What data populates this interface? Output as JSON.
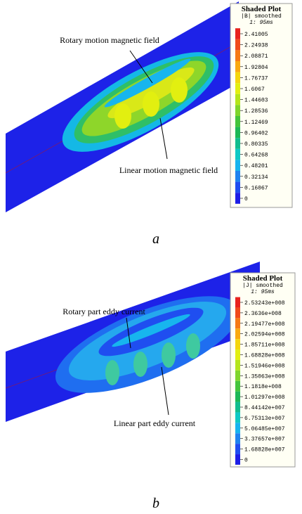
{
  "panels": [
    {
      "annotations": [
        "Rotary motion magnetic field",
        "Linear motion magnetic field"
      ],
      "legend": {
        "title": "Shaded Plot",
        "quantity": "|B| smoothed",
        "time": "1: 95ms",
        "levels": [
          {
            "label": "2.41005",
            "color": "#e8231e"
          },
          {
            "label": "2.24938",
            "color": "#f04a1a"
          },
          {
            "label": "2.08871",
            "color": "#f67a14"
          },
          {
            "label": "1.92804",
            "color": "#f9a90f"
          },
          {
            "label": "1.76737",
            "color": "#f4d60c"
          },
          {
            "label": "1.6067",
            "color": "#e2ef10"
          },
          {
            "label": "1.44603",
            "color": "#b4e51a"
          },
          {
            "label": "1.28536",
            "color": "#7fd52a"
          },
          {
            "label": "1.12469",
            "color": "#44c43a"
          },
          {
            "label": "0.96402",
            "color": "#1db855"
          },
          {
            "label": "0.80335",
            "color": "#12bd8d"
          },
          {
            "label": "0.64268",
            "color": "#0fc9c4"
          },
          {
            "label": "0.48201",
            "color": "#17b5ee"
          },
          {
            "label": "0.32134",
            "color": "#1f84ef"
          },
          {
            "label": "0.16067",
            "color": "#1f4ef0"
          },
          {
            "label": "0",
            "color": "#1d1ee6"
          }
        ]
      },
      "caption": "a"
    },
    {
      "annotations": [
        "Rotary part eddy current",
        "Linear part eddy current"
      ],
      "legend": {
        "title": "Shaded Plot",
        "quantity": "|J| smoothed",
        "time": "1: 95ms",
        "levels": [
          {
            "label": "2.53243e+008",
            "color": "#e8231e"
          },
          {
            "label": "2.3636e+008",
            "color": "#f04a1a"
          },
          {
            "label": "2.19477e+008",
            "color": "#f67a14"
          },
          {
            "label": "2.02594e+008",
            "color": "#f9a90f"
          },
          {
            "label": "1.85711e+008",
            "color": "#f4d60c"
          },
          {
            "label": "1.68828e+008",
            "color": "#e2ef10"
          },
          {
            "label": "1.51946e+008",
            "color": "#b4e51a"
          },
          {
            "label": "1.35063e+008",
            "color": "#7fd52a"
          },
          {
            "label": "1.1818e+008",
            "color": "#44c43a"
          },
          {
            "label": "1.01297e+008",
            "color": "#1db855"
          },
          {
            "label": "8.44142e+007",
            "color": "#12bd8d"
          },
          {
            "label": "6.75313e+007",
            "color": "#0fc9c4"
          },
          {
            "label": "5.06485e+007",
            "color": "#17b5ee"
          },
          {
            "label": "3.37657e+007",
            "color": "#1f84ef"
          },
          {
            "label": "1.68828e+007",
            "color": "#1f4ef0"
          },
          {
            "label": "0",
            "color": "#1d1ee6"
          }
        ]
      },
      "caption": "b"
    }
  ]
}
